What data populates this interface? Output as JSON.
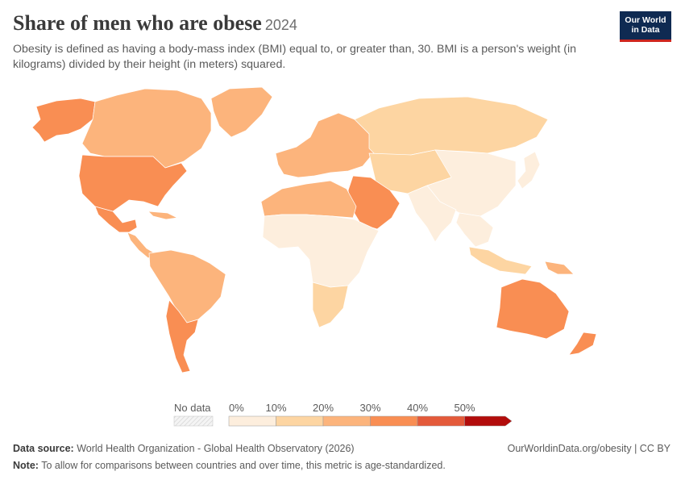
{
  "header": {
    "title": "Share of men who are obese",
    "year": "2024",
    "subtitle": "Obesity is defined as having a body-mass index (BMI) equal to, or greater than, 30. BMI is a person's weight (in kilograms) divided by their height (in meters) squared."
  },
  "logo": {
    "line1": "Our World",
    "line2": "in Data"
  },
  "legend": {
    "no_data_label": "No data",
    "tick_labels": [
      "0%",
      "10%",
      "20%",
      "30%",
      "40%",
      "50%"
    ],
    "bin_colors": [
      "#fdeedd",
      "#fdd5a2",
      "#fcb47c",
      "#f98e53",
      "#e45a3a",
      "#b20c0b"
    ],
    "no_data_color": "#f2f2f2"
  },
  "footer": {
    "source_label": "Data source:",
    "source_text": "World Health Organization - Global Health Observatory (2026)",
    "note_label": "Note:",
    "note_text": "To allow for comparisons between countries and over time, this metric is age-standardized.",
    "url": "OurWorldinData.org/obesity | CC BY"
  },
  "map_regions": [
    {
      "name": "alaska",
      "bin": 3
    },
    {
      "name": "canada",
      "bin": 2
    },
    {
      "name": "greenland",
      "bin": 2
    },
    {
      "name": "usa",
      "bin": 3
    },
    {
      "name": "mexico",
      "bin": 3
    },
    {
      "name": "central-america",
      "bin": 2
    },
    {
      "name": "caribbean",
      "bin": 2
    },
    {
      "name": "south-america-north",
      "bin": 2
    },
    {
      "name": "argentina-chile",
      "bin": 3
    },
    {
      "name": "europe",
      "bin": 2
    },
    {
      "name": "russia",
      "bin": 1
    },
    {
      "name": "central-asia",
      "bin": 1
    },
    {
      "name": "china",
      "bin": 0
    },
    {
      "name": "india-south-asia",
      "bin": 0
    },
    {
      "name": "middle-east",
      "bin": 3
    },
    {
      "name": "north-africa",
      "bin": 2
    },
    {
      "name": "sub-saharan-africa",
      "bin": 0
    },
    {
      "name": "southern-africa",
      "bin": 1
    },
    {
      "name": "southeast-asia",
      "bin": 0
    },
    {
      "name": "indonesia",
      "bin": 1
    },
    {
      "name": "japan",
      "bin": 0
    },
    {
      "name": "australia",
      "bin": 3
    },
    {
      "name": "new-zealand",
      "bin": 3
    },
    {
      "name": "papua-new-guinea",
      "bin": 2
    }
  ]
}
